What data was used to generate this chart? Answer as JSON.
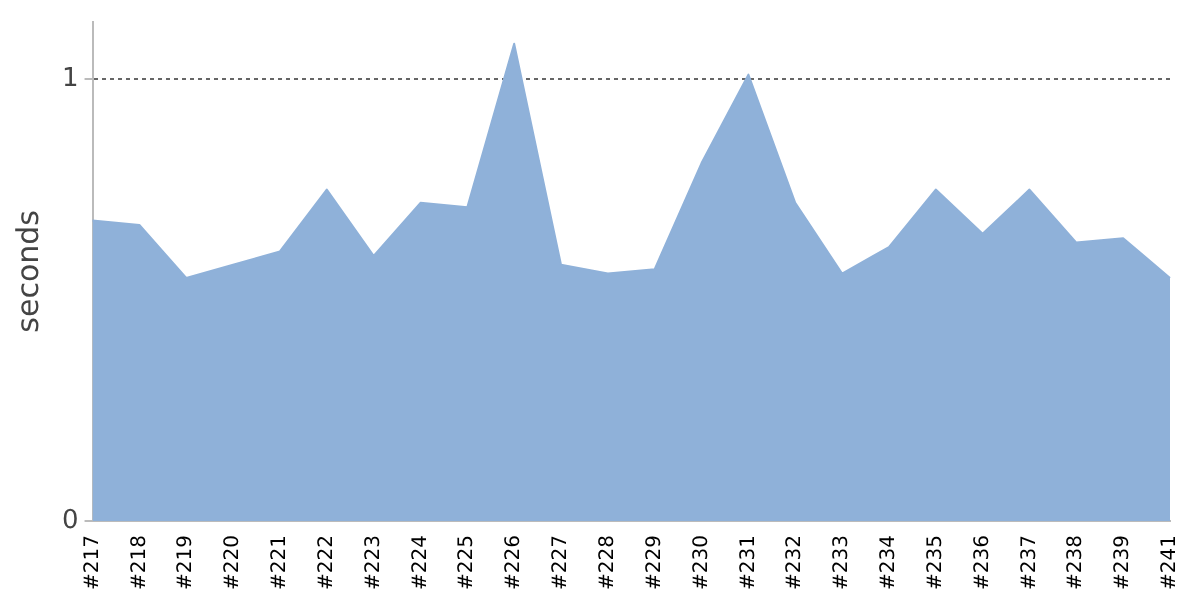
{
  "chart_data": {
    "type": "area",
    "ylabel": "seconds",
    "categories": [
      "#217",
      "#218",
      "#219",
      "#220",
      "#221",
      "#222",
      "#223",
      "#224",
      "#225",
      "#226",
      "#227",
      "#228",
      "#229",
      "#230",
      "#231",
      "#232",
      "#233",
      "#234",
      "#235",
      "#236",
      "#237",
      "#238",
      "#239",
      "#241"
    ],
    "series": [
      {
        "color": "#8fb1d9",
        "values": [
          0.68,
          0.67,
          0.55,
          0.58,
          0.61,
          0.75,
          0.6,
          0.72,
          0.71,
          1.08,
          0.58,
          0.56,
          0.57,
          0.81,
          1.01,
          0.72,
          0.56,
          0.62,
          0.75,
          0.65,
          0.75,
          0.63,
          0.64,
          0.55
        ]
      }
    ],
    "ylim": [
      0,
      1.13
    ],
    "yticks": [
      0,
      1
    ],
    "grid": "y",
    "legend": false
  }
}
